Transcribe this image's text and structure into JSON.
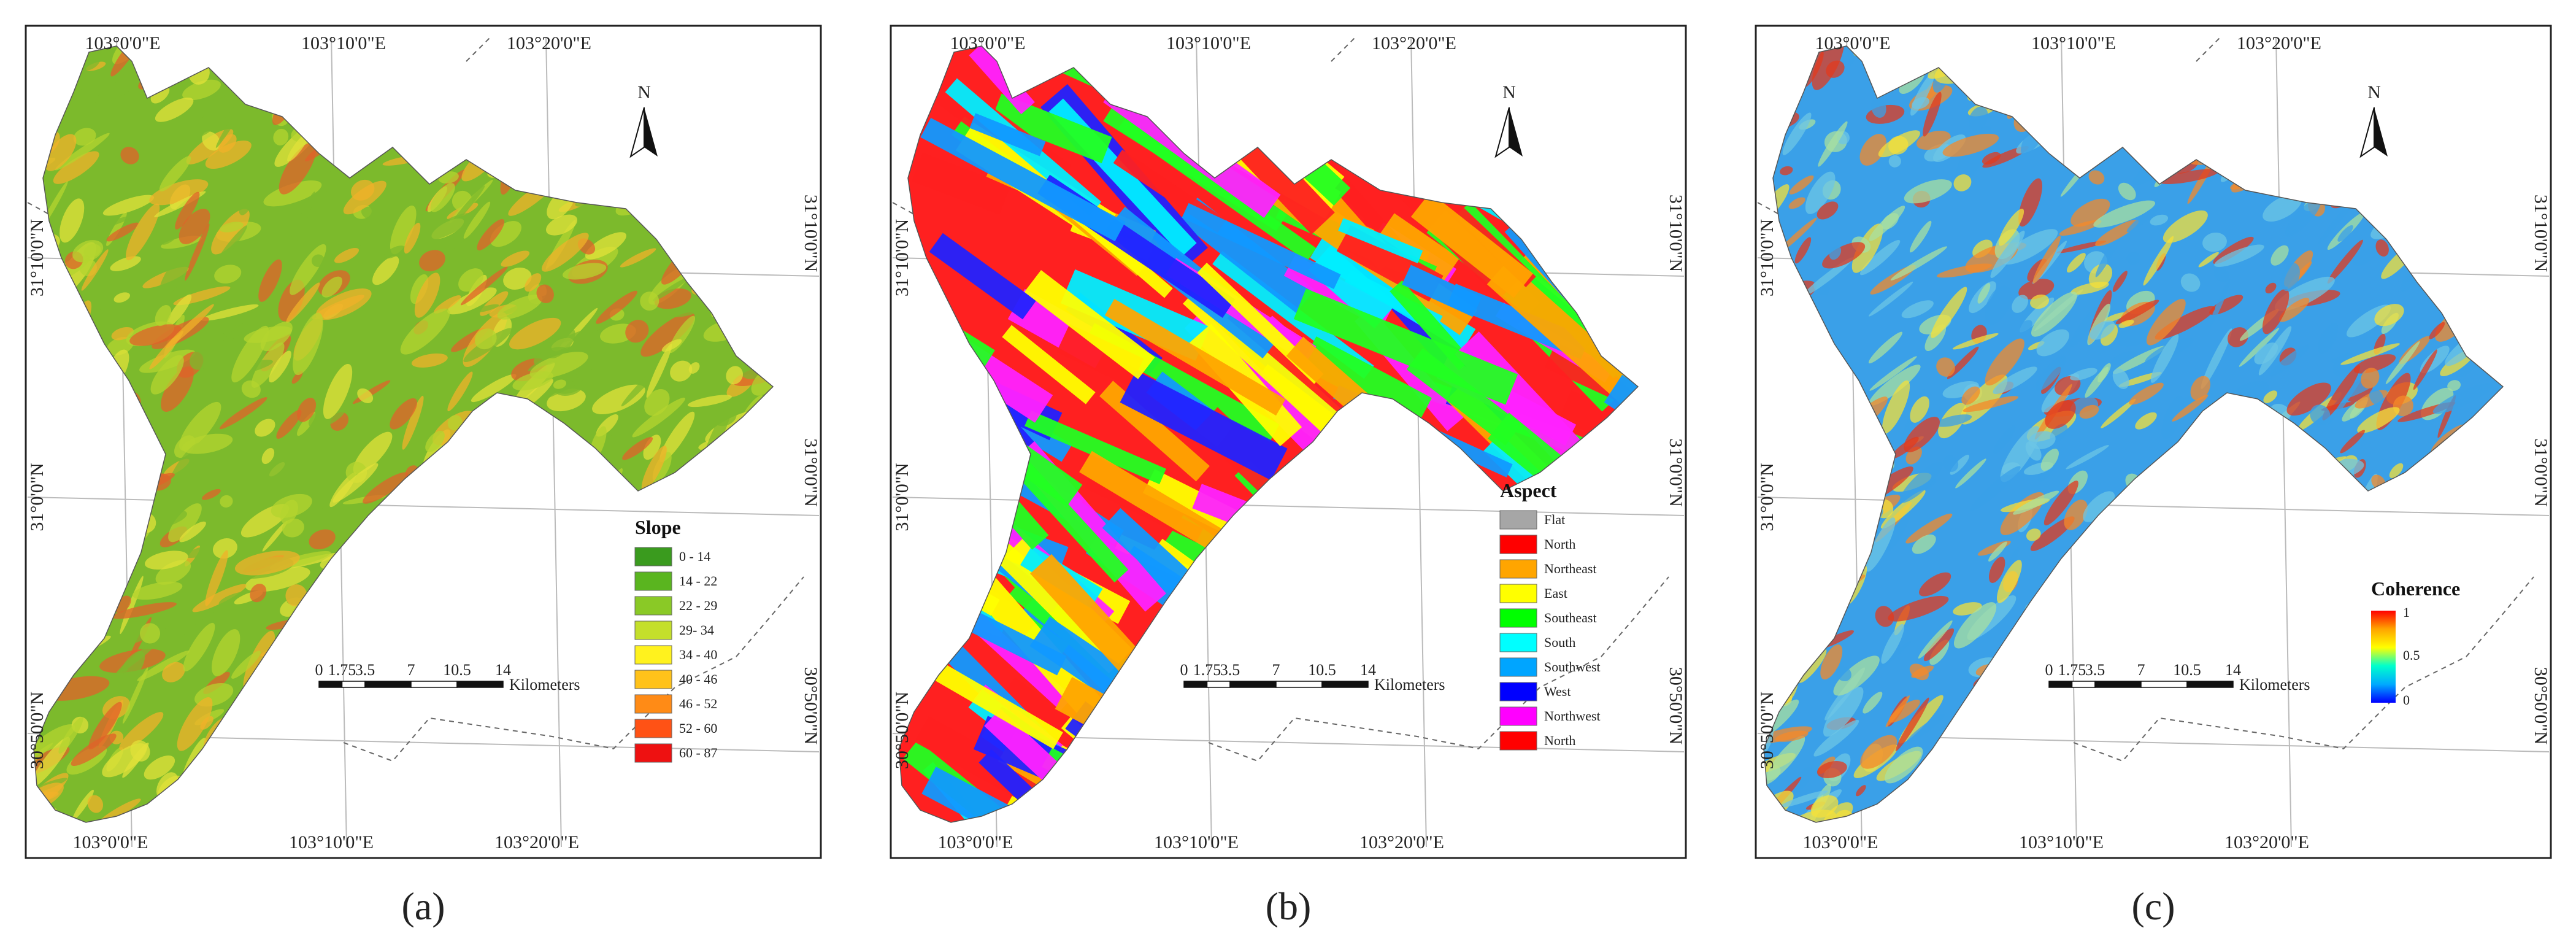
{
  "panels": [
    {
      "caption": "(a)",
      "x_ticks_top": [
        "103°0'0\"E",
        "103°10'0\"E",
        "103°20'0\"E"
      ],
      "x_ticks_bottom": [
        "103°0'0\"E",
        "103°10'0\"E",
        "103°20'0\"E"
      ],
      "y_ticks_left": [
        "31°10'0\"N",
        "31°0'0\"N",
        "30°50'0\"N"
      ],
      "y_ticks_right": [
        "31°10'0\"N",
        "31°0'0\"N",
        "30°50'0\"N"
      ],
      "north": "N",
      "legend": {
        "title": "Slope",
        "items": [
          {
            "label": "0 - 14",
            "color": "#3a9b1e"
          },
          {
            "label": "14 - 22",
            "color": "#5ab51f"
          },
          {
            "label": "22 - 29",
            "color": "#8ac926"
          },
          {
            "label": "29- 34",
            "color": "#c4df2b"
          },
          {
            "label": "34 - 40",
            "color": "#fff21e"
          },
          {
            "label": "40 - 46",
            "color": "#ffc21a"
          },
          {
            "label": "46 - 52",
            "color": "#ff8b16"
          },
          {
            "label": "52 - 60",
            "color": "#ff5215"
          },
          {
            "label": "60 - 87",
            "color": "#ee1111"
          }
        ]
      },
      "scale": {
        "ticks": [
          "0",
          "1.75",
          "3.5",
          "7",
          "10.5",
          "14"
        ],
        "unit": "Kilometers"
      },
      "fill_colors": [
        "#7cba2c",
        "#b4d42f",
        "#e2e23a",
        "#f0b12a",
        "#e0612a"
      ]
    },
    {
      "caption": "(b)",
      "x_ticks_top": [
        "103°0'0\"E",
        "103°10'0\"E",
        "103°20'0\"E"
      ],
      "x_ticks_bottom": [
        "103°0'0\"E",
        "103°10'0\"E",
        "103°20'0\"E"
      ],
      "y_ticks_left": [
        "31°10'0\"N",
        "31°0'0\"N",
        "30°50'0\"N"
      ],
      "y_ticks_right": [
        "31°10'0\"N",
        "31°0'0\"N",
        "30°50'0\"N"
      ],
      "north": "N",
      "legend": {
        "title": "Aspect",
        "items": [
          {
            "label": "Flat",
            "color": "#a6a6a6"
          },
          {
            "label": "North",
            "color": "#ff0000"
          },
          {
            "label": "Northeast",
            "color": "#ffa500"
          },
          {
            "label": "East",
            "color": "#ffff00"
          },
          {
            "label": "Southeast",
            "color": "#00ff00"
          },
          {
            "label": "South",
            "color": "#00ffff"
          },
          {
            "label": "Southwest",
            "color": "#00a5ff"
          },
          {
            "label": "West",
            "color": "#0000ff"
          },
          {
            "label": "Northwest",
            "color": "#ff00ff"
          },
          {
            "label": "North",
            "color": "#ff0000"
          }
        ]
      },
      "scale": {
        "ticks": [
          "0",
          "1.75",
          "3.5",
          "7",
          "10.5",
          "14"
        ],
        "unit": "Kilometers"
      },
      "fill_colors": [
        "#ff2020",
        "#ffa500",
        "#ffff00",
        "#22ff22",
        "#00eeff",
        "#1199ff",
        "#2222ff",
        "#ff22ff"
      ]
    },
    {
      "caption": "(c)",
      "x_ticks_top": [
        "103°0'0\"E",
        "103°10'0\"E",
        "103°20'0\"E"
      ],
      "x_ticks_bottom": [
        "103°0'0\"E",
        "103°10'0\"E",
        "103°20'0\"E"
      ],
      "y_ticks_left": [
        "31°10'0\"N",
        "31°0'0\"N",
        "30°50'0\"N"
      ],
      "y_ticks_right": [
        "31°10'0\"N",
        "31°0'0\"N",
        "30°50'0\"N"
      ],
      "north": "N",
      "legend": {
        "title": "Coherence",
        "max_label": "1",
        "mid_label": "0.5",
        "min_label": "0",
        "gradient": [
          "#ff0000",
          "#ffa500",
          "#ffff00",
          "#00ffcc",
          "#00aaff",
          "#0000ff"
        ]
      },
      "scale": {
        "ticks": [
          "0",
          "1.75",
          "3.5",
          "7",
          "10.5",
          "14"
        ],
        "unit": "Kilometers"
      },
      "fill_colors": [
        "#3aa0e8",
        "#6cc6e6",
        "#a8e0a0",
        "#f4e03a",
        "#f48a2a",
        "#e23a1e"
      ]
    }
  ]
}
